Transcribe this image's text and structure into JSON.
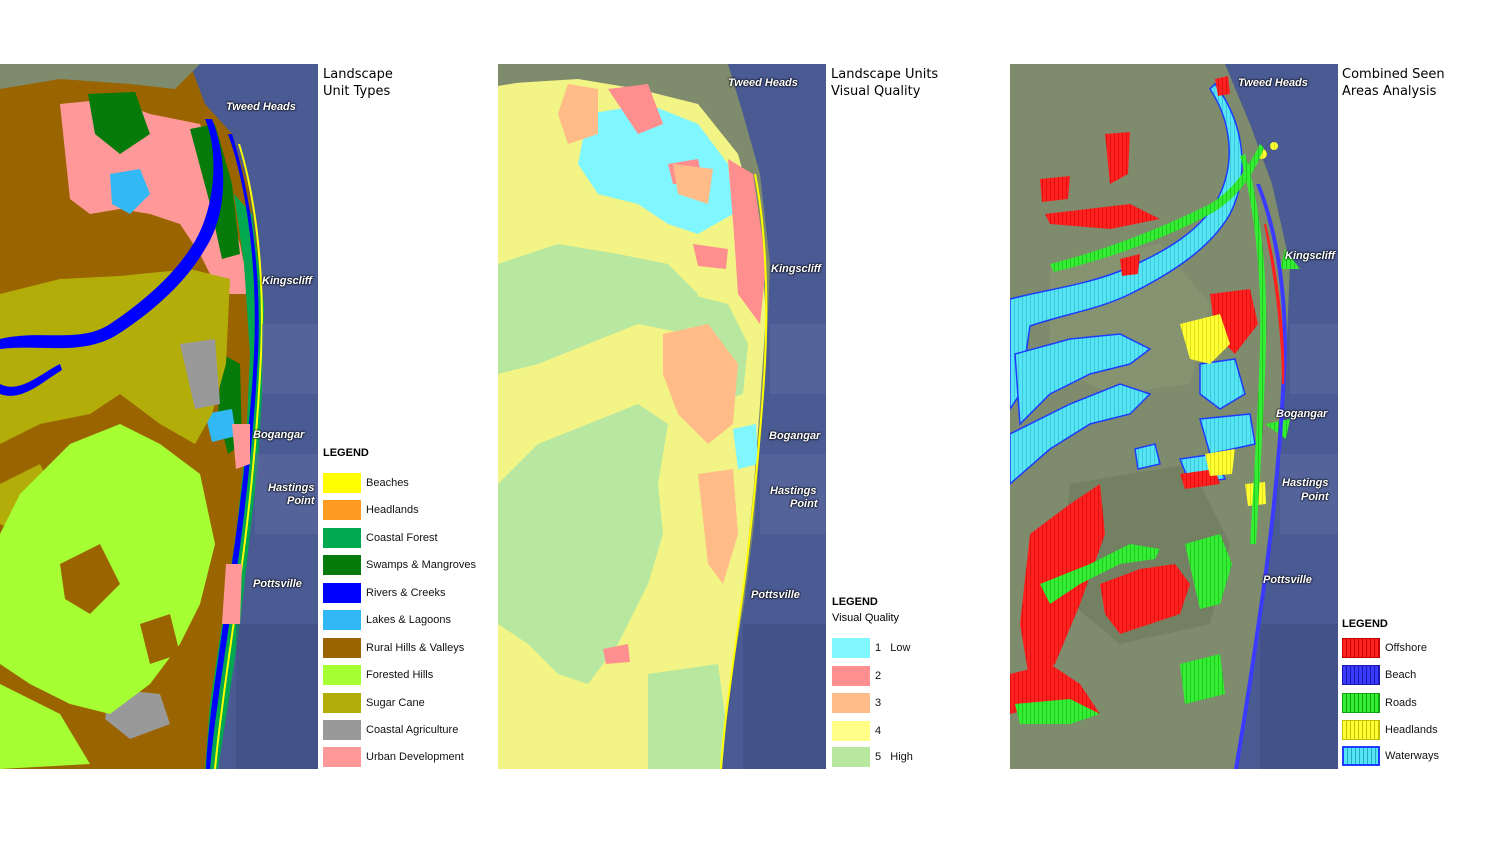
{
  "panels": [
    {
      "title_line1": "Landscape",
      "title_line2": "Unit Types",
      "legend_title": "LEGEND",
      "legend_subtitle": "",
      "legend": [
        {
          "label": "Beaches",
          "color": "#ffff00"
        },
        {
          "label": "Headlands",
          "color": "#ff9a22"
        },
        {
          "label": "Coastal Forest",
          "color": "#00a94f"
        },
        {
          "label": "Swamps & Mangroves",
          "color": "#067a0a"
        },
        {
          "label": "Rivers & Creeks",
          "color": "#0000ff"
        },
        {
          "label": "Lakes & Lagoons",
          "color": "#31b8f5"
        },
        {
          "label": "Rural Hills & Valleys",
          "color": "#9a6400"
        },
        {
          "label": "Forested Hills",
          "color": "#a6ff33"
        },
        {
          "label": "Sugar Cane",
          "color": "#b3ad0a"
        },
        {
          "label": "Coastal Agriculture",
          "color": "#999999"
        },
        {
          "label": "Urban Development",
          "color": "#ff9999"
        }
      ]
    },
    {
      "title_line1": "Landscape Units",
      "title_line2": "Visual Quality",
      "legend_title": "LEGEND",
      "legend_subtitle": "Visual Quality",
      "legend": [
        {
          "label": "1   Low",
          "color": "#80f6ff"
        },
        {
          "label": "2",
          "color": "#ff8f8f"
        },
        {
          "label": "3",
          "color": "#ffbb88"
        },
        {
          "label": "4",
          "color": "#ffff88"
        },
        {
          "label": "5   High",
          "color": "#b8e8a0"
        }
      ]
    },
    {
      "title_line1": "Combined Seen",
      "title_line2": "Areas Analysis",
      "legend_title": "LEGEND",
      "legend_subtitle": "",
      "legend": [
        {
          "label": "Offshore",
          "color": "#ff2020"
        },
        {
          "label": "Beach",
          "color": "#3b3bff"
        },
        {
          "label": "Roads",
          "color": "#33ee33"
        },
        {
          "label": "Headlands",
          "color": "#ffff33"
        },
        {
          "label": "Waterways",
          "color": "#55e5f5"
        }
      ]
    }
  ],
  "towns": [
    "Tweed Heads",
    "Kingscliff",
    "Bogangar",
    "Hastings",
    "Point",
    "Pottsville"
  ],
  "colors": {
    "ocean": "#4a5a92",
    "ocean_dark": "#3b4a80",
    "land_photo": "#7e8b6c"
  }
}
